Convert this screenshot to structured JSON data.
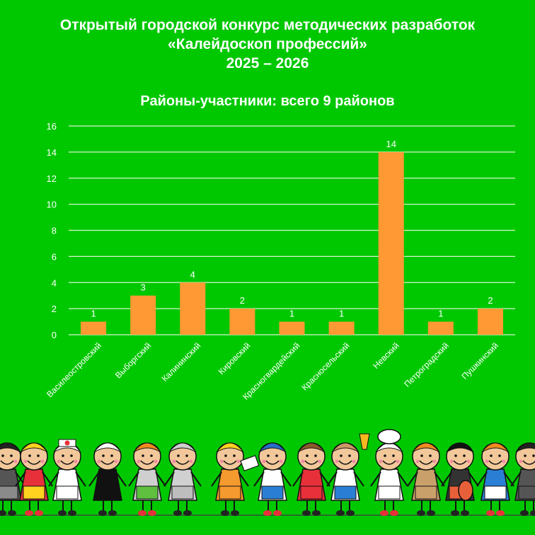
{
  "header": {
    "line1": "Открытый городской конкурс методических разработок",
    "line2": "«Калейдоскоп профессий»",
    "line3": "2025 – 2026"
  },
  "colors": {
    "background": "#00c800",
    "bar": "#ff9933",
    "text": "#ffffff",
    "grid": "#d8f5d0"
  },
  "chart_data": {
    "type": "bar",
    "title": "Районы-участники: всего 9 районов",
    "xlabel": "",
    "ylabel": "",
    "categories": [
      "Василеостровский",
      "Выборгский",
      "Калининский",
      "Кировский",
      "Красногвардейский",
      "Красносельский",
      "Невский",
      "Петроградский",
      "Пушкинский"
    ],
    "values": [
      1,
      3,
      4,
      2,
      1,
      1,
      14,
      1,
      2
    ],
    "ylim": [
      0,
      16
    ],
    "yticks": [
      0,
      2,
      4,
      6,
      8,
      10,
      12,
      14,
      16
    ],
    "grid": true,
    "data_labels": true,
    "legend": null
  },
  "illustration": {
    "description": "Row of cartoon children in profession costumes holding hands",
    "figures": [
      "pilot",
      "dancer",
      "nurse",
      "judge",
      "hairdresser",
      "astronaut",
      "mechanic",
      "sailor",
      "girl-red-dress",
      "champion",
      "chef",
      "firefighter",
      "musician",
      "waitress",
      "officer"
    ]
  }
}
